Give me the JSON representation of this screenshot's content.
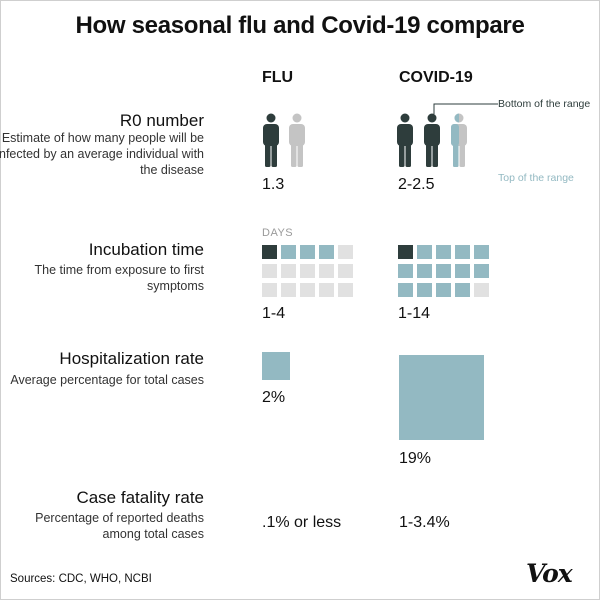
{
  "title": "How seasonal flu and Covid-19 compare",
  "columns": {
    "flu": "FLU",
    "covid": "COVID-19"
  },
  "legend": {
    "bottom_of_range": "Bottom of the range",
    "top_of_range": "Top of the range",
    "colors": {
      "bottom": "#2e3d3c",
      "top": "#93b9c2",
      "flu_second": "#c4c4c4",
      "empty": "#e1e1e1"
    }
  },
  "rows": {
    "r0": {
      "title": "R0 number",
      "description": "Estimate of how many people will be infected by an average individual with the disease",
      "flu_value": "1.3",
      "covid_value": "2-2.5"
    },
    "incubation": {
      "title": "Incubation time",
      "description": "The time from exposure to first symptoms",
      "unit_label": "DAYS",
      "flu_value": "1-4",
      "covid_value": "1-14",
      "flu_days_min": 1,
      "flu_days_max": 4,
      "covid_days_min": 1,
      "covid_days_max": 14,
      "grid_cells": 15
    },
    "hospitalization": {
      "title": "Hospitalization rate",
      "description": "Average percentage for total cases",
      "flu_value": "2%",
      "covid_value": "19%",
      "flu_percent": 2,
      "covid_percent": 19
    },
    "fatality": {
      "title": "Case fatality rate",
      "description": "Percentage of reported deaths among total cases",
      "flu_value": ".1% or less",
      "covid_value": "1-3.4%"
    }
  },
  "sources": "Sources: CDC, WHO,  NCBI",
  "logo": "Vox"
}
